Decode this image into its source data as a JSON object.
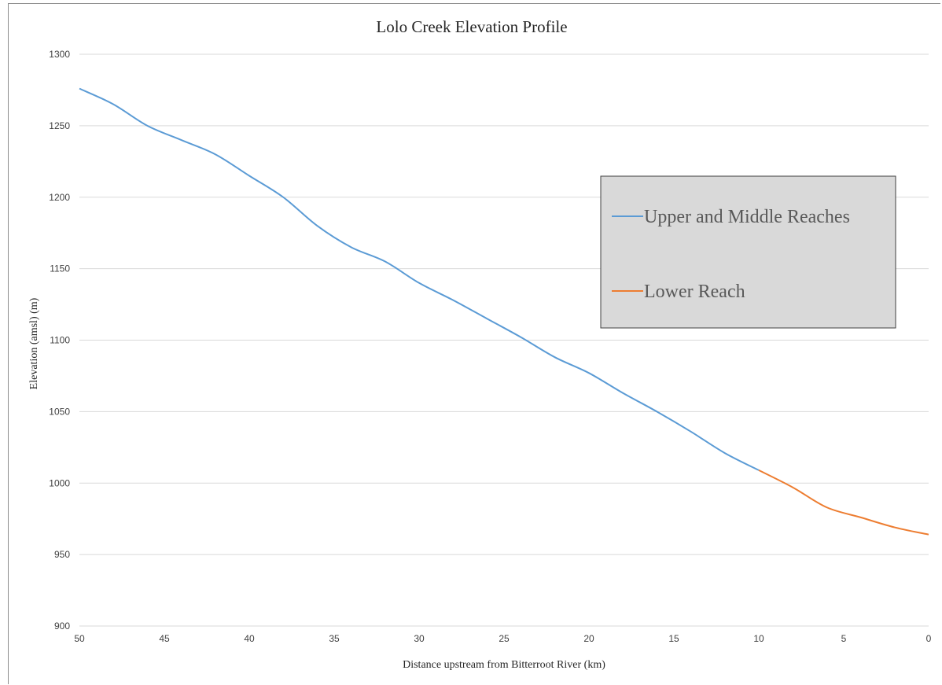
{
  "chart_data": {
    "type": "line",
    "title": "Lolo Creek Elevation Profile",
    "xlabel": "Distance upstream from Bitterroot River (km)",
    "ylabel": "Elevation (amsl) (m)",
    "xlim": [
      50,
      0
    ],
    "ylim": [
      900,
      1300
    ],
    "x_ticks": [
      50,
      45,
      40,
      35,
      30,
      25,
      20,
      15,
      10,
      5,
      0
    ],
    "y_ticks": [
      900,
      950,
      1000,
      1050,
      1100,
      1150,
      1200,
      1250,
      1300
    ],
    "grid": "horizontal",
    "legend_position": "right",
    "series": [
      {
        "name": "Upper and Middle Reaches",
        "color": "#5b9bd5",
        "x": [
          50,
          48,
          46,
          44,
          42,
          40,
          38,
          36,
          34,
          32,
          30,
          28,
          26,
          24,
          22,
          20,
          18,
          16,
          14,
          12,
          10
        ],
        "y": [
          1276,
          1265,
          1250,
          1240,
          1230,
          1215,
          1200,
          1180,
          1165,
          1155,
          1140,
          1128,
          1115,
          1102,
          1088,
          1077,
          1063,
          1050,
          1036,
          1021,
          1009
        ]
      },
      {
        "name": "Lower Reach",
        "color": "#ed7d31",
        "x": [
          10,
          8,
          6,
          4,
          2,
          0
        ],
        "y": [
          1009,
          997,
          983,
          976,
          969,
          964
        ]
      }
    ]
  }
}
